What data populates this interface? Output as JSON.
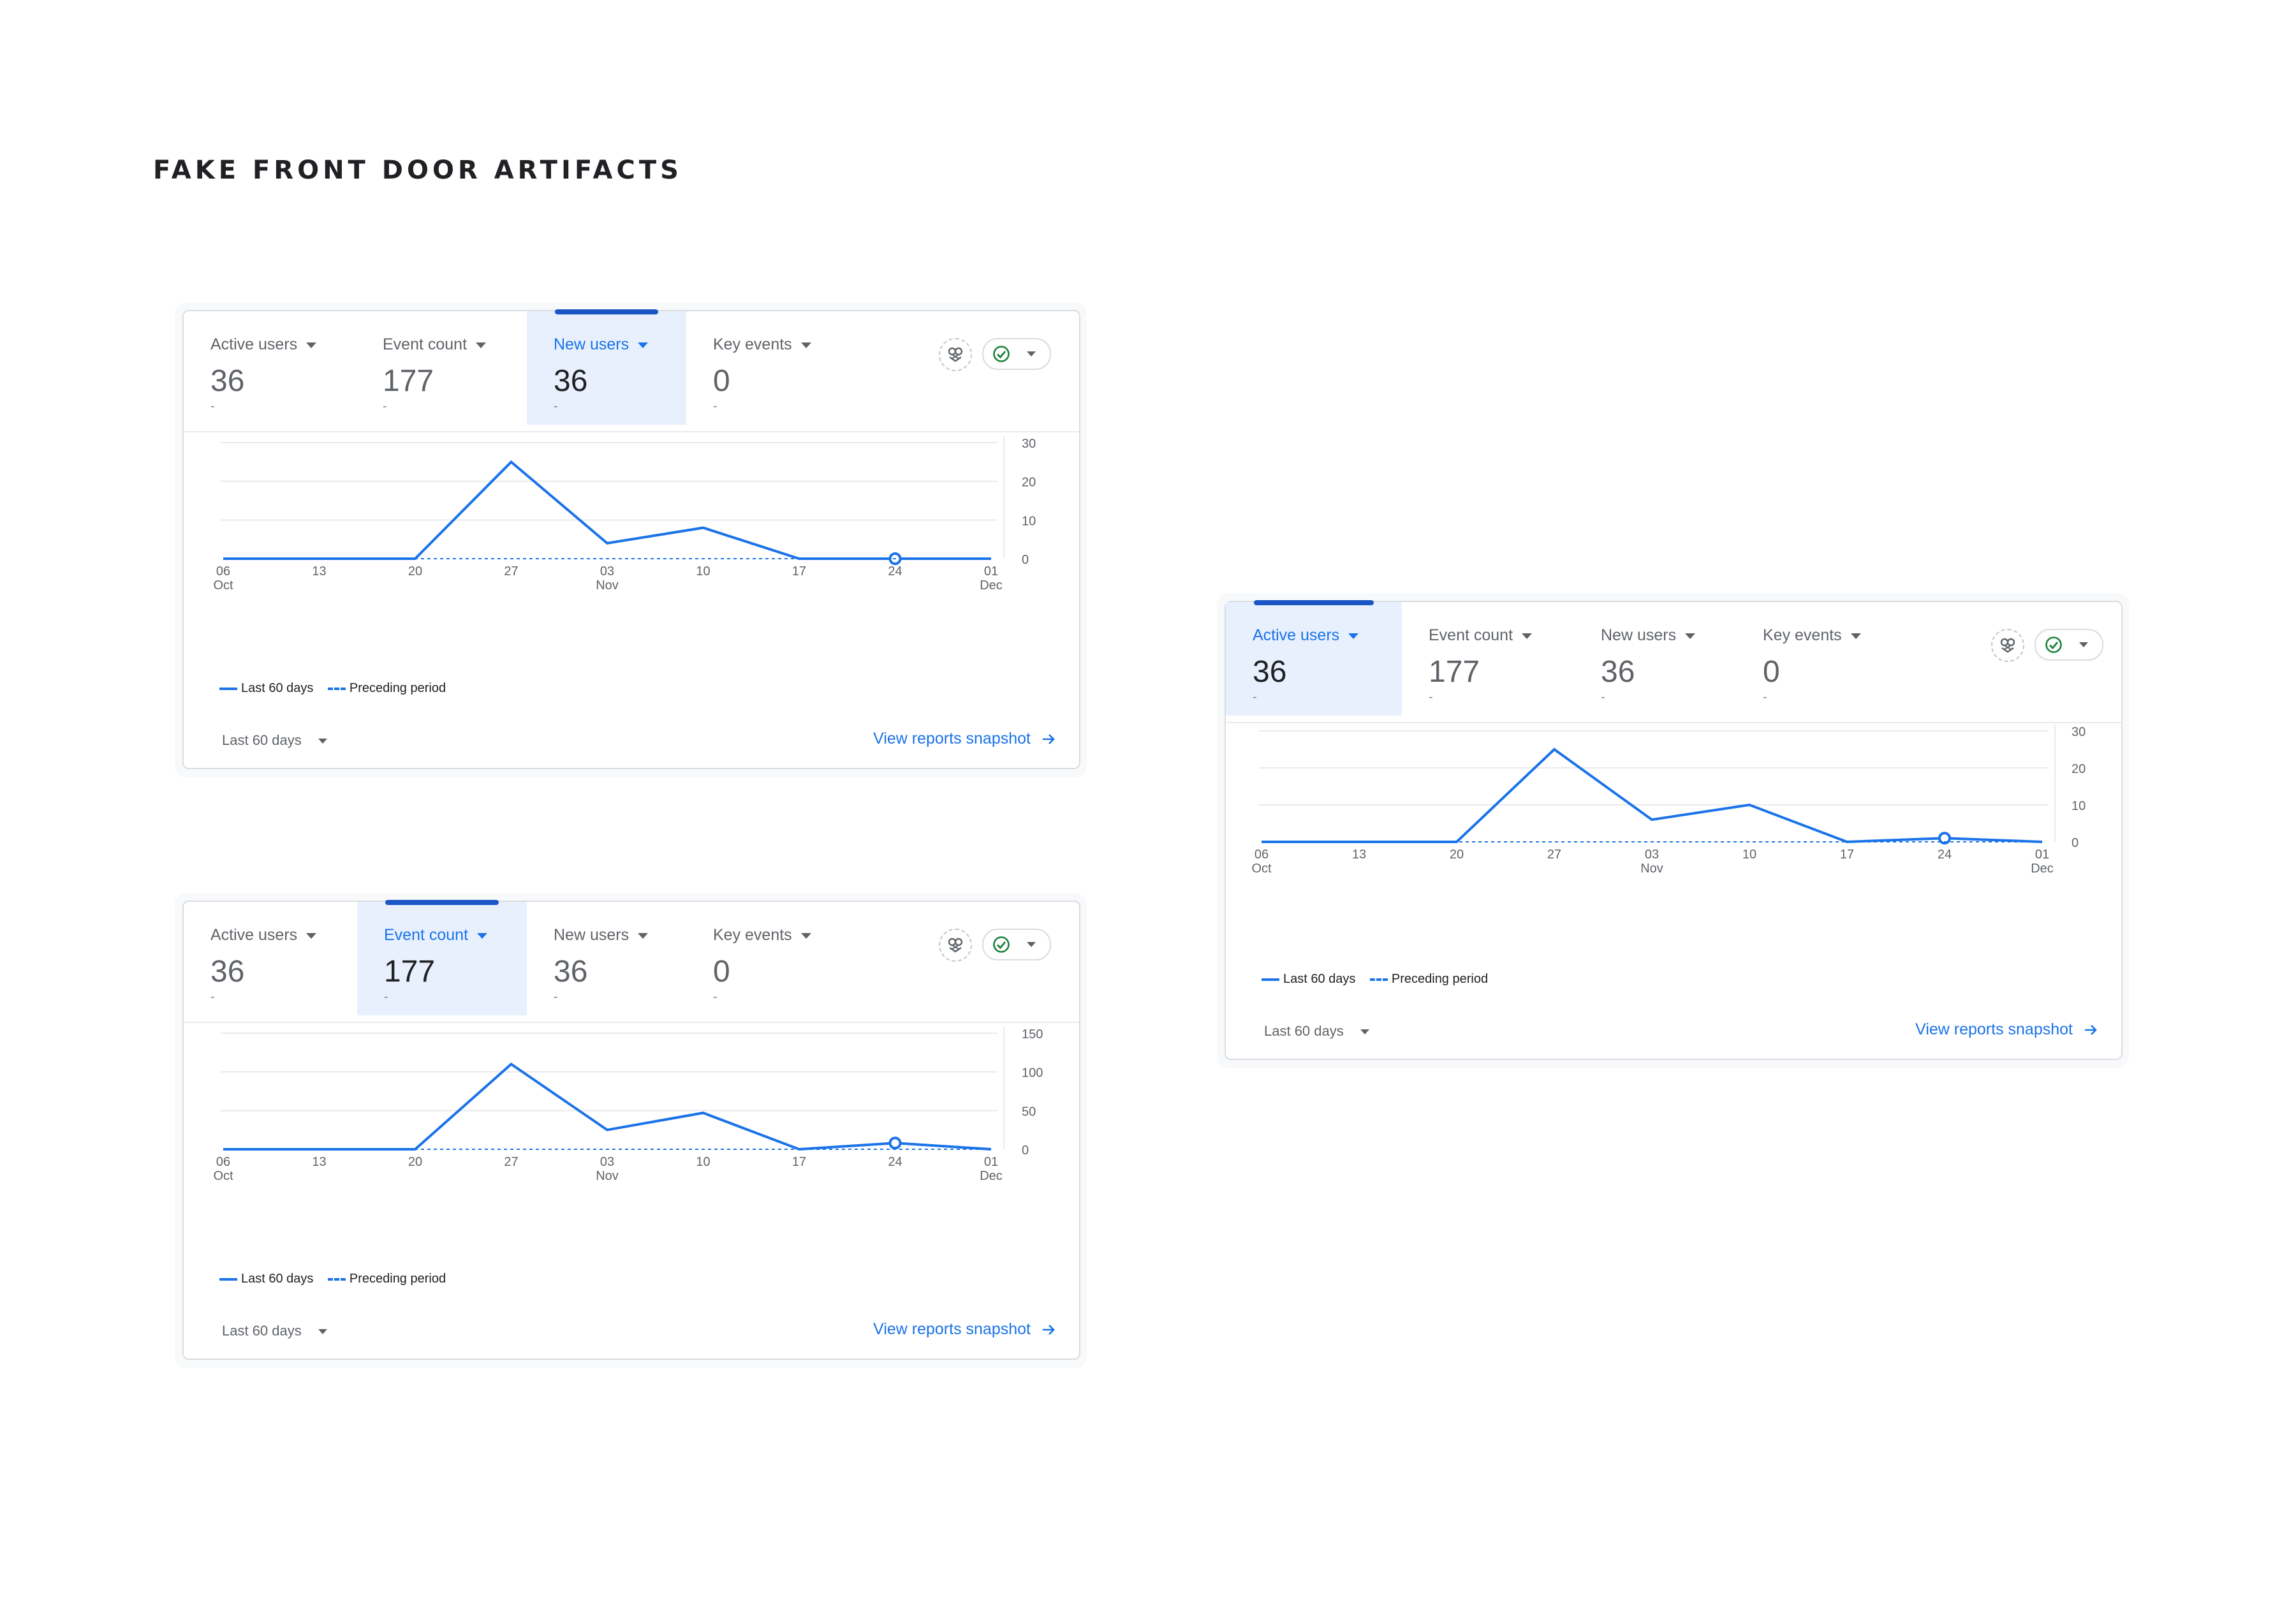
{
  "page_title": "FAKE FRONT DOOR ARTIFACTS",
  "colors": {
    "accent": "#1a73e8",
    "selected_tab_bg": "#e8f0fe",
    "tab_indicator": "#1a56c4",
    "status_ok": "#188038",
    "gridline": "#e8eaed"
  },
  "icons": {
    "insights": "sparkle-insights-icon",
    "status": "check-circle-icon",
    "dropdown": "caret-down-icon",
    "link": "arrow-right-icon"
  },
  "cards": [
    {
      "selected_metric": "New users",
      "metrics": [
        {
          "label": "Active users",
          "value": "36",
          "compare": "-"
        },
        {
          "label": "Event count",
          "value": "177",
          "compare": "-"
        },
        {
          "label": "New users",
          "value": "36",
          "compare": "-"
        },
        {
          "label": "Key events",
          "value": "0",
          "compare": "-"
        }
      ],
      "legend": {
        "current": "Last 60 days",
        "previous": "Preceding period"
      },
      "date_range": "Last 60 days",
      "link_label": "View reports snapshot"
    },
    {
      "selected_metric": "Event count",
      "metrics": [
        {
          "label": "Active users",
          "value": "36",
          "compare": "-"
        },
        {
          "label": "Event count",
          "value": "177",
          "compare": "-"
        },
        {
          "label": "New users",
          "value": "36",
          "compare": "-"
        },
        {
          "label": "Key events",
          "value": "0",
          "compare": "-"
        }
      ],
      "legend": {
        "current": "Last 60 days",
        "previous": "Preceding period"
      },
      "date_range": "Last 60 days",
      "link_label": "View reports snapshot"
    },
    {
      "selected_metric": "Active users",
      "metrics": [
        {
          "label": "Active users",
          "value": "36",
          "compare": "-"
        },
        {
          "label": "Event count",
          "value": "177",
          "compare": "-"
        },
        {
          "label": "New users",
          "value": "36",
          "compare": "-"
        },
        {
          "label": "Key events",
          "value": "0",
          "compare": "-"
        }
      ],
      "legend": {
        "current": "Last 60 days",
        "previous": "Preceding period"
      },
      "date_range": "Last 60 days",
      "link_label": "View reports snapshot"
    }
  ],
  "chart_data": [
    {
      "type": "line",
      "x_ticks": [
        {
          "day": "06",
          "month": "Oct"
        },
        {
          "day": "13",
          "month": ""
        },
        {
          "day": "20",
          "month": ""
        },
        {
          "day": "27",
          "month": ""
        },
        {
          "day": "03",
          "month": "Nov"
        },
        {
          "day": "10",
          "month": ""
        },
        {
          "day": "17",
          "month": ""
        },
        {
          "day": "24",
          "month": ""
        },
        {
          "day": "01",
          "month": "Dec"
        }
      ],
      "y_ticks": [
        0,
        10,
        20,
        30
      ],
      "ylim": [
        0,
        30
      ],
      "series": [
        {
          "name": "Last 60 days",
          "style": "solid",
          "values": [
            0,
            0,
            0,
            25,
            4,
            8,
            0,
            0,
            0
          ],
          "marker_index": 7
        },
        {
          "name": "Preceding period",
          "style": "dashed",
          "values": [
            0,
            0,
            0,
            0,
            0,
            0,
            0,
            0,
            0
          ]
        }
      ]
    },
    {
      "type": "line",
      "x_ticks": [
        {
          "day": "06",
          "month": "Oct"
        },
        {
          "day": "13",
          "month": ""
        },
        {
          "day": "20",
          "month": ""
        },
        {
          "day": "27",
          "month": ""
        },
        {
          "day": "03",
          "month": "Nov"
        },
        {
          "day": "10",
          "month": ""
        },
        {
          "day": "17",
          "month": ""
        },
        {
          "day": "24",
          "month": ""
        },
        {
          "day": "01",
          "month": "Dec"
        }
      ],
      "y_ticks": [
        0,
        50,
        100,
        150
      ],
      "ylim": [
        0,
        150
      ],
      "series": [
        {
          "name": "Last 60 days",
          "style": "solid",
          "values": [
            0,
            0,
            0,
            110,
            25,
            47,
            0,
            8,
            0
          ],
          "marker_index": 7
        },
        {
          "name": "Preceding period",
          "style": "dashed",
          "values": [
            0,
            0,
            0,
            0,
            0,
            0,
            0,
            0,
            0
          ]
        }
      ]
    },
    {
      "type": "line",
      "x_ticks": [
        {
          "day": "06",
          "month": "Oct"
        },
        {
          "day": "13",
          "month": ""
        },
        {
          "day": "20",
          "month": ""
        },
        {
          "day": "27",
          "month": ""
        },
        {
          "day": "03",
          "month": "Nov"
        },
        {
          "day": "10",
          "month": ""
        },
        {
          "day": "17",
          "month": ""
        },
        {
          "day": "24",
          "month": ""
        },
        {
          "day": "01",
          "month": "Dec"
        }
      ],
      "y_ticks": [
        0,
        10,
        20,
        30
      ],
      "ylim": [
        0,
        30
      ],
      "series": [
        {
          "name": "Last 60 days",
          "style": "solid",
          "values": [
            0,
            0,
            0,
            25,
            6,
            10,
            0,
            1,
            0
          ],
          "marker_index": 7
        },
        {
          "name": "Preceding period",
          "style": "dashed",
          "values": [
            0,
            0,
            0,
            0,
            0,
            0,
            0,
            0,
            0
          ]
        }
      ]
    }
  ]
}
